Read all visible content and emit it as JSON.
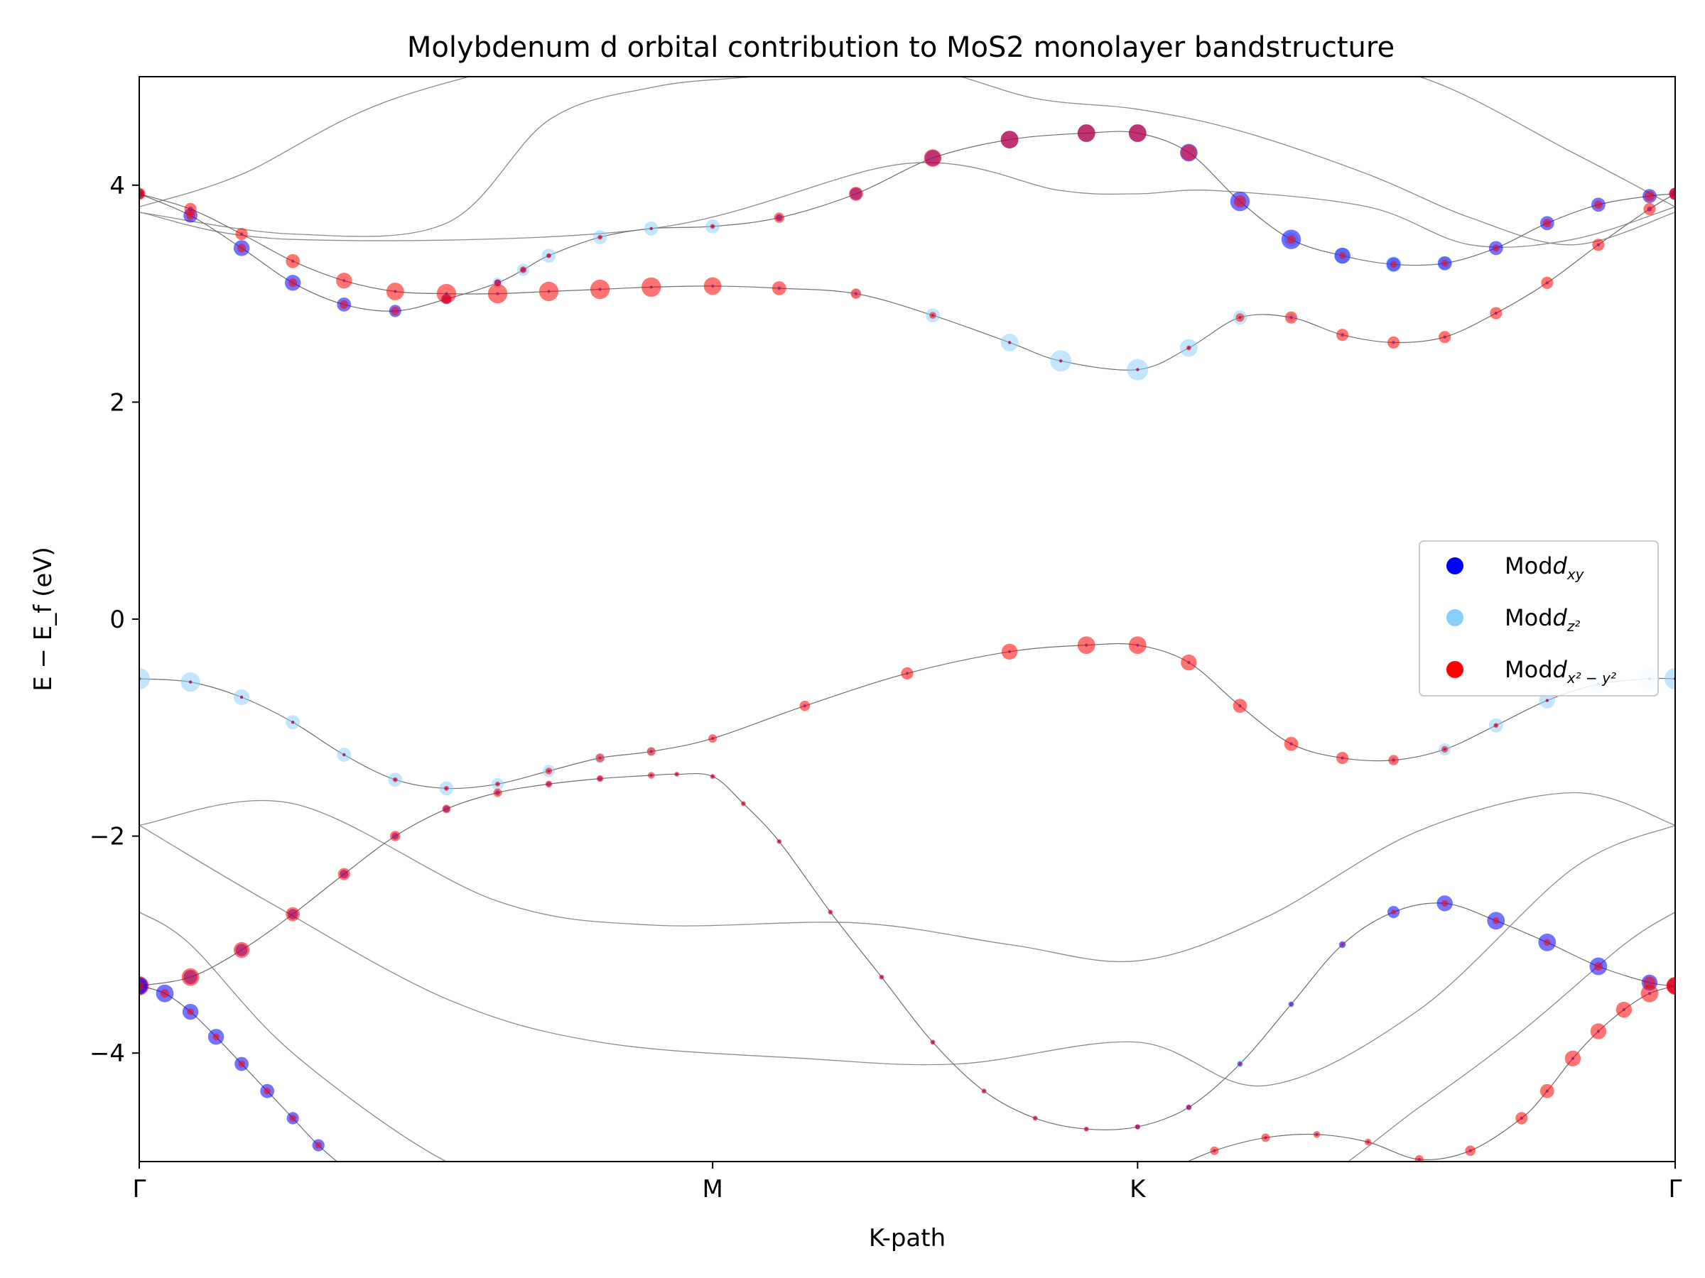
{
  "chart_data": {
    "type": "scatter",
    "title": "Molybdenum d orbital contribution to MoS2 monolayer bandstructure",
    "xlabel": "K-path",
    "ylabel": "E − E_f (eV)",
    "xlim": [
      0,
      3
    ],
    "ylim": [
      -5,
      5
    ],
    "yticks": [
      4,
      2,
      0,
      -2,
      -4
    ],
    "ytick_labels": [
      "4",
      "2",
      "0",
      "−2",
      "−4"
    ],
    "kpoints": [
      {
        "label": "Γ",
        "x": 0
      },
      {
        "label": "M",
        "x": 1.12
      },
      {
        "label": "K",
        "x": 1.95
      },
      {
        "label": "Γ",
        "x": 3
      }
    ],
    "legend": {
      "placement": "right",
      "entries": [
        {
          "name": "Mod",
          "sub": "xy",
          "color": "#0000ff"
        },
        {
          "name": "Mod",
          "sub": "z²",
          "color": "#87cefa"
        },
        {
          "name": "Mod",
          "sub": "x² − y²",
          "color": "#ff0000"
        }
      ]
    },
    "background_bands": [
      {
        "x": [
          0,
          0.2,
          0.5,
          1.0,
          1.3,
          1.7,
          1.95,
          2.2,
          2.5,
          2.8,
          3.0
        ],
        "y": [
          3.8,
          4.1,
          4.8,
          5.4,
          5.7,
          5.8,
          5.6,
          5.2,
          5.0,
          4.3,
          3.8
        ]
      },
      {
        "x": [
          0,
          0.3,
          0.6,
          0.8,
          1.0,
          1.2,
          1.5,
          1.75,
          1.95,
          2.15,
          2.4,
          2.6,
          2.8,
          3.0
        ],
        "y": [
          3.75,
          3.55,
          3.65,
          4.6,
          4.9,
          5.0,
          5.1,
          4.8,
          4.7,
          4.5,
          4.1,
          3.7,
          3.45,
          3.75
        ]
      },
      {
        "x": [
          0,
          0.3,
          1.0,
          1.5,
          1.8,
          1.95,
          2.1,
          2.4,
          2.6,
          2.8,
          3.0
        ],
        "y": [
          3.75,
          3.5,
          3.6,
          4.2,
          3.95,
          3.92,
          3.95,
          3.8,
          3.45,
          3.5,
          3.8
        ]
      },
      {
        "x": [
          0,
          0.3,
          0.7,
          1.0,
          1.4,
          1.7,
          1.95,
          2.2,
          2.5,
          2.8,
          3.0
        ],
        "y": [
          -1.9,
          -1.7,
          -2.6,
          -2.82,
          -2.8,
          -3.0,
          -3.15,
          -2.75,
          -1.95,
          -1.6,
          -1.9
        ]
      },
      {
        "x": [
          0,
          0.25,
          0.6,
          0.9,
          1.3,
          1.6,
          1.95,
          2.2,
          2.5,
          2.8,
          3.0
        ],
        "y": [
          -1.9,
          -2.6,
          -3.5,
          -3.9,
          -4.05,
          -4.1,
          -3.9,
          -4.3,
          -3.6,
          -2.3,
          -1.9
        ]
      },
      {
        "x": [
          0,
          0.1,
          0.3,
          0.6,
          0.8,
          1.0,
          1.25,
          1.6,
          1.95,
          2.25,
          2.5,
          2.7,
          2.9,
          3.0
        ],
        "y": [
          -2.7,
          -3.0,
          -4.0,
          -5.0,
          -5.2,
          -5.6,
          -5.7,
          -5.2,
          -5.5,
          -5.3,
          -4.5,
          -3.8,
          -3.0,
          -2.7
        ]
      }
    ],
    "bands": [
      {
        "x": [
          0,
          0.1,
          0.2,
          0.3,
          0.4,
          0.5,
          0.6,
          0.7,
          0.75,
          0.8,
          0.9,
          1.0,
          1.12,
          1.25,
          1.4,
          1.55,
          1.7,
          1.85,
          1.95,
          2.05,
          2.15,
          2.25,
          2.35,
          2.45,
          2.55,
          2.65,
          2.75,
          2.85,
          2.95,
          3.0
        ],
        "y": [
          3.92,
          3.72,
          3.42,
          3.1,
          2.9,
          2.84,
          2.95,
          3.1,
          3.22,
          3.35,
          3.52,
          3.6,
          3.62,
          3.7,
          3.92,
          4.25,
          4.42,
          4.48,
          4.48,
          4.3,
          3.85,
          3.5,
          3.35,
          3.27,
          3.28,
          3.42,
          3.65,
          3.82,
          3.9,
          3.92
        ],
        "xy": [
          0.4,
          0.6,
          0.7,
          0.7,
          0.6,
          0.5,
          0.4,
          0.2,
          0.1,
          0.05,
          0.0,
          0.0,
          0.0,
          0.2,
          0.5,
          0.7,
          0.8,
          0.8,
          0.8,
          0.8,
          0.9,
          0.9,
          0.7,
          0.6,
          0.6,
          0.6,
          0.6,
          0.6,
          0.6,
          0.5
        ],
        "z2": [
          0.0,
          0.0,
          0.0,
          0.0,
          0.0,
          0.0,
          0.2,
          0.4,
          0.5,
          0.6,
          0.6,
          0.6,
          0.6,
          0.2,
          0.0,
          0.0,
          0.0,
          0.0,
          0.0,
          0.0,
          0.2,
          0.6,
          0.7,
          0.7,
          0.5,
          0.2,
          0.1,
          0.0,
          0.0,
          0.0
        ],
        "x2y2": [
          0.4,
          0.3,
          0.3,
          0.3,
          0.3,
          0.3,
          0.3,
          0.2,
          0.2,
          0.1,
          0.1,
          0.0,
          0.1,
          0.4,
          0.6,
          0.8,
          0.8,
          0.8,
          0.8,
          0.7,
          0.5,
          0.3,
          0.2,
          0.2,
          0.2,
          0.2,
          0.3,
          0.3,
          0.4,
          0.4
        ]
      },
      {
        "x": [
          0,
          0.1,
          0.2,
          0.3,
          0.4,
          0.5,
          0.6,
          0.7,
          0.8,
          0.9,
          1.0,
          1.12,
          1.25,
          1.4,
          1.55,
          1.7,
          1.8,
          1.95,
          2.05,
          2.15,
          2.25,
          2.35,
          2.45,
          2.55,
          2.65,
          2.75,
          2.85,
          2.95,
          3.0
        ],
        "y": [
          3.92,
          3.78,
          3.55,
          3.3,
          3.12,
          3.02,
          3.0,
          3.0,
          3.02,
          3.04,
          3.06,
          3.07,
          3.05,
          3.0,
          2.8,
          2.55,
          2.38,
          2.3,
          2.5,
          2.78,
          2.78,
          2.62,
          2.55,
          2.6,
          2.82,
          3.1,
          3.45,
          3.78,
          3.92
        ],
        "xy": [
          0.2,
          0.1,
          0.0,
          0.0,
          0.0,
          0.0,
          0.0,
          0.0,
          0.0,
          0.0,
          0.0,
          0.0,
          0.0,
          0.0,
          0.0,
          0.0,
          0.0,
          0.0,
          0.0,
          0.0,
          0.0,
          0.0,
          0.0,
          0.0,
          0.0,
          0.0,
          0.0,
          0.1,
          0.2
        ],
        "z2": [
          0.0,
          0.0,
          0.0,
          0.0,
          0.0,
          0.0,
          0.0,
          0.0,
          0.0,
          0.0,
          0.0,
          0.0,
          0.1,
          0.3,
          0.6,
          0.8,
          1.0,
          1.0,
          0.8,
          0.6,
          0.3,
          0.1,
          0.0,
          0.0,
          0.0,
          0.0,
          0.0,
          0.0,
          0.0
        ],
        "x2y2": [
          0.5,
          0.5,
          0.5,
          0.6,
          0.7,
          0.8,
          0.9,
          0.9,
          0.9,
          0.9,
          0.9,
          0.8,
          0.6,
          0.4,
          0.2,
          0.0,
          0.0,
          0.0,
          0.1,
          0.3,
          0.5,
          0.5,
          0.5,
          0.5,
          0.5,
          0.5,
          0.5,
          0.5,
          0.5
        ]
      },
      {
        "x": [
          0,
          0.1,
          0.2,
          0.3,
          0.4,
          0.5,
          0.6,
          0.7,
          0.8,
          0.9,
          1.0,
          1.12,
          1.3,
          1.5,
          1.7,
          1.85,
          1.95,
          2.05,
          2.15,
          2.25,
          2.35,
          2.45,
          2.55,
          2.65,
          2.75,
          2.85,
          2.95,
          3.0
        ],
        "y": [
          -0.55,
          -0.58,
          -0.72,
          -0.95,
          -1.25,
          -1.48,
          -1.56,
          -1.52,
          -1.4,
          -1.28,
          -1.22,
          -1.1,
          -0.8,
          -0.5,
          -0.3,
          -0.24,
          -0.24,
          -0.4,
          -0.8,
          -1.15,
          -1.28,
          -1.3,
          -1.2,
          -0.98,
          -0.75,
          -0.6,
          -0.55,
          -0.55
        ],
        "xy": [
          0.0,
          0.0,
          0.0,
          0.0,
          0.0,
          0.0,
          0.0,
          0.0,
          0.0,
          0.0,
          0.0,
          0.0,
          0.0,
          0.0,
          0.0,
          0.0,
          0.0,
          0.0,
          0.0,
          0.0,
          0.0,
          0.0,
          0.0,
          0.0,
          0.0,
          0.0,
          0.0,
          0.0
        ],
        "z2": [
          1.0,
          0.9,
          0.7,
          0.6,
          0.6,
          0.6,
          0.6,
          0.5,
          0.5,
          0.4,
          0.3,
          0.0,
          0.0,
          0.0,
          0.0,
          0.0,
          0.0,
          0.0,
          0.0,
          0.0,
          0.0,
          0.2,
          0.5,
          0.6,
          0.7,
          0.8,
          0.9,
          1.0
        ],
        "x2y2": [
          0.0,
          0.0,
          0.0,
          0.0,
          0.0,
          0.1,
          0.1,
          0.1,
          0.2,
          0.3,
          0.3,
          0.3,
          0.4,
          0.5,
          0.7,
          0.8,
          0.8,
          0.7,
          0.6,
          0.6,
          0.5,
          0.4,
          0.2,
          0.1,
          0.0,
          0.0,
          0.0,
          0.0
        ]
      },
      {
        "x": [
          0,
          0.1,
          0.2,
          0.3,
          0.4,
          0.5,
          0.6,
          0.7,
          0.8,
          0.9,
          1.0,
          1.05,
          1.12,
          1.18,
          1.25,
          1.35,
          1.45,
          1.55,
          1.65,
          1.75,
          1.85,
          1.95,
          2.05,
          2.15,
          2.25,
          2.35,
          2.45,
          2.55,
          2.65,
          2.75,
          2.85,
          2.95,
          3.0
        ],
        "y": [
          -3.38,
          -3.3,
          -3.05,
          -2.72,
          -2.35,
          -2.0,
          -1.75,
          -1.6,
          -1.52,
          -1.47,
          -1.44,
          -1.43,
          -1.45,
          -1.7,
          -2.05,
          -2.7,
          -3.3,
          -3.9,
          -4.35,
          -4.6,
          -4.7,
          -4.68,
          -4.5,
          -4.1,
          -3.55,
          -3.0,
          -2.7,
          -2.62,
          -2.78,
          -2.98,
          -3.2,
          -3.35,
          -3.38
        ],
        "xy": [
          0.7,
          0.6,
          0.5,
          0.4,
          0.3,
          0.2,
          0.2,
          0.1,
          0.1,
          0.1,
          0.0,
          0.0,
          0.0,
          0.0,
          0.0,
          0.0,
          0.0,
          0.0,
          0.0,
          0.0,
          0.0,
          0.1,
          0.1,
          0.1,
          0.1,
          0.2,
          0.5,
          0.7,
          0.8,
          0.8,
          0.8,
          0.7,
          0.7
        ],
        "z2": [
          0.0,
          0.0,
          0.0,
          0.0,
          0.0,
          0.0,
          0.0,
          0.0,
          0.0,
          0.0,
          0.0,
          0.0,
          0.0,
          0.0,
          0.0,
          0.0,
          0.1,
          0.1,
          0.1,
          0.1,
          0.1,
          0.1,
          0.2,
          0.2,
          0.2,
          0.1,
          0.0,
          0.0,
          0.0,
          0.0,
          0.0,
          0.0,
          0.0
        ],
        "x2y2": [
          0.9,
          0.8,
          0.7,
          0.6,
          0.5,
          0.4,
          0.3,
          0.3,
          0.2,
          0.2,
          0.2,
          0.1,
          0.1,
          0.1,
          0.1,
          0.1,
          0.1,
          0.1,
          0.1,
          0.1,
          0.1,
          0.1,
          0.1,
          0.0,
          0.0,
          0.0,
          0.1,
          0.2,
          0.2,
          0.2,
          0.3,
          0.5,
          0.8
        ]
      },
      {
        "x": [
          0,
          0.05,
          0.1,
          0.15,
          0.2,
          0.25,
          0.3,
          0.35,
          0.4,
          0.45,
          0.5,
          0.55
        ],
        "y": [
          -3.38,
          -3.45,
          -3.62,
          -3.85,
          -4.1,
          -4.35,
          -4.6,
          -4.85,
          -5.05,
          -5.2,
          -5.35,
          -5.5
        ],
        "xy": [
          0.8,
          0.8,
          0.7,
          0.7,
          0.6,
          0.6,
          0.5,
          0.5,
          0.4,
          0.4,
          0.4,
          0.4
        ],
        "z2": [
          0.0,
          0.0,
          0.0,
          0.0,
          0.0,
          0.0,
          0.0,
          0.0,
          0.0,
          0.0,
          0.0,
          0.0
        ],
        "x2y2": [
          0.3,
          0.3,
          0.2,
          0.2,
          0.2,
          0.2,
          0.2,
          0.2,
          0.2,
          0.2,
          0.2,
          0.2
        ]
      },
      {
        "x": [
          2.0,
          2.1,
          2.2,
          2.3,
          2.4,
          2.5,
          2.6,
          2.7,
          2.75,
          2.8,
          2.85,
          2.9,
          2.95,
          3.0
        ],
        "y": [
          -5.1,
          -4.9,
          -4.78,
          -4.75,
          -4.82,
          -4.98,
          -4.9,
          -4.6,
          -4.35,
          -4.05,
          -3.8,
          -3.6,
          -3.45,
          -3.38
        ],
        "xy": [
          0.0,
          0.0,
          0.0,
          0.0,
          0.0,
          0.0,
          0.0,
          0.0,
          0.0,
          0.0,
          0.0,
          0.0,
          0.0,
          0.0
        ],
        "z2": [
          0.0,
          0.0,
          0.0,
          0.0,
          0.0,
          0.0,
          0.0,
          0.0,
          0.0,
          0.0,
          0.0,
          0.0,
          0.0,
          0.0
        ],
        "x2y2": [
          0.3,
          0.3,
          0.3,
          0.2,
          0.2,
          0.3,
          0.4,
          0.5,
          0.6,
          0.7,
          0.7,
          0.7,
          0.8,
          0.8
        ]
      }
    ]
  }
}
